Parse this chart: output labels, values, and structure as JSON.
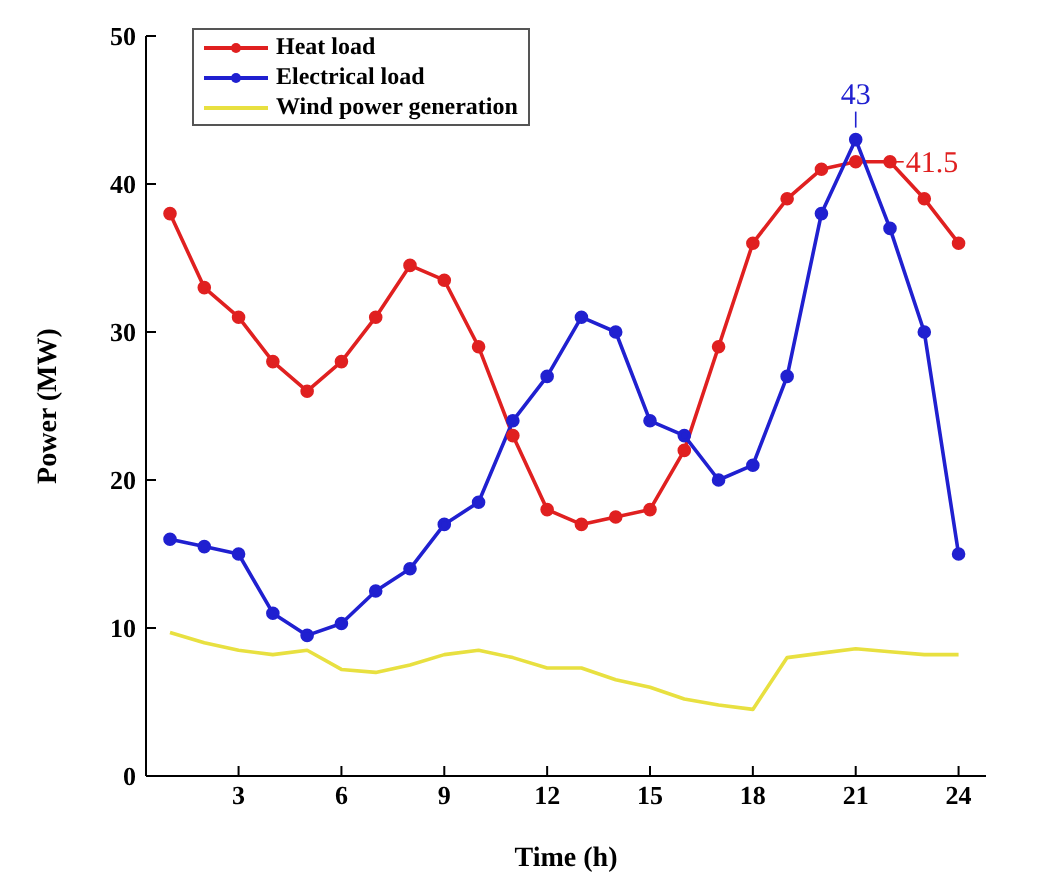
{
  "chart_data": {
    "type": "line",
    "xlabel": "Time (h)",
    "ylabel": "Power (MW)",
    "x": [
      1,
      2,
      3,
      4,
      5,
      6,
      7,
      8,
      9,
      10,
      11,
      12,
      13,
      14,
      15,
      16,
      17,
      18,
      19,
      20,
      21,
      22,
      23,
      24
    ],
    "series": [
      {
        "name": "Heat load",
        "color": "#e02020",
        "marker": "circle",
        "values": [
          38,
          33,
          31,
          28,
          26,
          28,
          31,
          34.5,
          33.5,
          29,
          23,
          18,
          17,
          17.5,
          18,
          22,
          29,
          36,
          39,
          41,
          41.5,
          41.5,
          39,
          36
        ]
      },
      {
        "name": "Electrical load",
        "color": "#2020d0",
        "marker": "circle",
        "values": [
          16,
          15.5,
          15,
          11,
          9.5,
          10.3,
          12.5,
          14,
          17,
          18.5,
          24,
          27,
          31,
          30,
          24,
          23,
          20,
          21,
          27,
          38,
          43,
          37,
          30,
          15
        ]
      },
      {
        "name": "Wind power generation",
        "color": "#e8e040",
        "marker": "none",
        "values": [
          9.7,
          9,
          8.5,
          8.2,
          8.5,
          7.2,
          7,
          7.5,
          8.2,
          8.5,
          8,
          7.3,
          7.3,
          6.5,
          6,
          5.2,
          4.8,
          4.5,
          8,
          8.3,
          8.6,
          8.4,
          8.2,
          8.2
        ]
      }
    ],
    "annotations": [
      {
        "text": "43",
        "x": 21,
        "y": 43
      },
      {
        "text": "41.5",
        "x": 21,
        "y": 41.5
      }
    ],
    "xlim": [
      0.3,
      24.8
    ],
    "xticks": [
      3,
      6,
      9,
      12,
      15,
      18,
      21,
      24
    ],
    "ylim": [
      0,
      50
    ],
    "yticks": [
      0,
      10,
      20,
      30,
      40,
      50
    ],
    "grid": false,
    "legend": "top left",
    "line_style": "solid"
  }
}
